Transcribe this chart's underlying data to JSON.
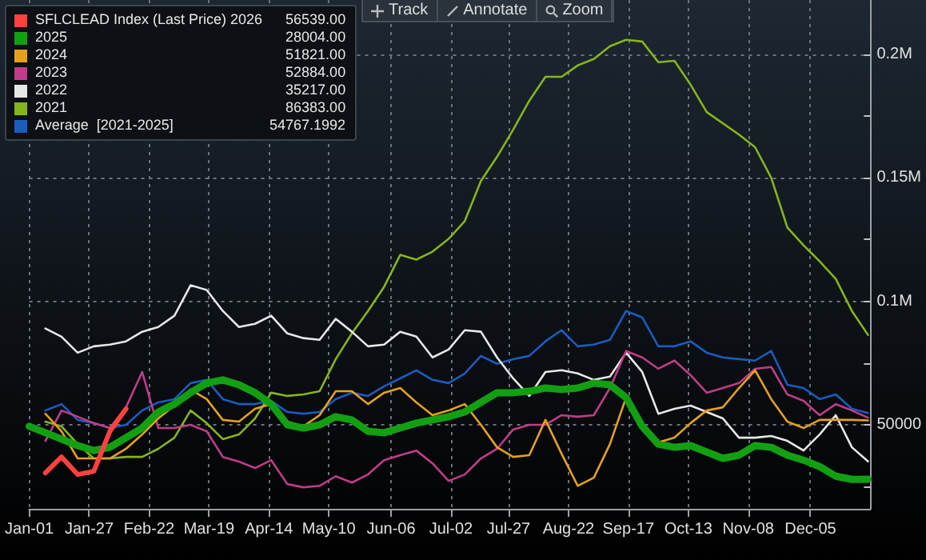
{
  "chart_data": {
    "type": "line",
    "annotations": [
      "Track",
      "Annotate",
      "Zoom",
      "56539.00",
      "28004.00",
      "51821.00",
      "52884.00",
      "35217.00",
      "86383.00",
      "54767.1992"
    ],
    "x": [
      "--01-01",
      "--01-08",
      "--01-15",
      "--01-22",
      "--01-29",
      "--02-05",
      "--02-12",
      "--02-19",
      "--02-26",
      "--03-04",
      "--03-11",
      "--03-18",
      "--03-25",
      "--04-01",
      "--04-08",
      "--04-15",
      "--04-22",
      "--04-29",
      "--05-06",
      "--05-13",
      "--05-20",
      "--05-27",
      "--06-03",
      "--06-10",
      "--06-17",
      "--06-24",
      "--07-01",
      "--07-08",
      "--07-15",
      "--07-22",
      "--07-29",
      "--08-05",
      "--08-12",
      "--08-19",
      "--08-26",
      "--09-02",
      "--09-09",
      "--09-16",
      "--09-23",
      "--09-30",
      "--10-07",
      "--10-14",
      "--10-21",
      "--10-28",
      "--11-04",
      "--11-11",
      "--11-18",
      "--11-25",
      "--12-02",
      "--12-09",
      "--12-16",
      "--12-23",
      "--12-30"
    ],
    "series": [
      {
        "name": "SFLCLEAD Index (Last Price) 2026",
        "color": "#ff4040",
        "values": [
          null,
          30500,
          37000,
          29900,
          31200,
          47400,
          56500,
          null,
          null,
          null,
          null,
          null,
          null,
          null,
          null,
          null,
          null,
          null,
          null,
          null,
          null,
          null,
          null,
          null,
          null,
          null,
          null,
          null,
          null,
          null,
          null,
          null,
          null,
          null,
          null,
          null,
          null,
          null,
          null,
          null,
          null,
          null,
          null,
          null,
          null,
          null,
          null,
          null,
          null,
          null,
          null,
          null,
          null
        ]
      },
      {
        "name": "2025",
        "color": "#12a012",
        "values": [
          49400,
          46800,
          44200,
          41600,
          39600,
          40900,
          44800,
          48700,
          55200,
          58400,
          63000,
          66900,
          68200,
          66200,
          63000,
          58400,
          50000,
          48700,
          50000,
          53300,
          52000,
          47400,
          46800,
          48700,
          50700,
          52000,
          53300,
          55200,
          59100,
          63000,
          63000,
          63600,
          64900,
          64300,
          64900,
          66900,
          66200,
          61000,
          49400,
          42200,
          40900,
          41600,
          39000,
          36400,
          37700,
          41600,
          40900,
          37700,
          35700,
          33100,
          29200,
          27900,
          28000
        ]
      },
      {
        "name": "2024",
        "color": "#e5a01c",
        "values": [
          null,
          54500,
          47400,
          36400,
          36400,
          36400,
          40300,
          46100,
          52600,
          57800,
          64300,
          60400,
          52000,
          51300,
          56500,
          58400,
          51300,
          49400,
          53900,
          63600,
          63600,
          58400,
          63000,
          64900,
          59100,
          53900,
          55800,
          58400,
          50000,
          40900,
          37000,
          37700,
          52000,
          38300,
          25300,
          28600,
          42200,
          61000,
          49400,
          42900,
          44800,
          50700,
          55800,
          57100,
          64900,
          72100,
          60400,
          51300,
          48700,
          52000,
          52000,
          52000,
          51800
        ]
      },
      {
        "name": "2023",
        "color": "#c03c88",
        "values": [
          null,
          43500,
          55800,
          53300,
          50700,
          48700,
          57100,
          71400,
          48700,
          48700,
          50000,
          47400,
          37000,
          35100,
          32500,
          35700,
          26000,
          24700,
          25300,
          29200,
          26600,
          29900,
          35700,
          37700,
          39600,
          34400,
          27300,
          29900,
          36400,
          40300,
          48100,
          50000,
          50000,
          53900,
          53300,
          53900,
          64900,
          79900,
          77300,
          72700,
          76000,
          70100,
          63000,
          64900,
          66900,
          72700,
          73400,
          62300,
          59700,
          53900,
          58400,
          55800,
          52900
        ]
      },
      {
        "name": "2022",
        "color": "#e6e6e6",
        "values": [
          null,
          89000,
          85700,
          79200,
          81800,
          82500,
          83800,
          87700,
          89600,
          94200,
          106500,
          104600,
          96100,
          89600,
          90900,
          94200,
          87000,
          85100,
          84400,
          92900,
          87700,
          81800,
          82500,
          87700,
          85700,
          77300,
          80500,
          88300,
          87700,
          77300,
          68800,
          61700,
          71400,
          72100,
          70800,
          68200,
          69500,
          79200,
          71400,
          54500,
          56500,
          57800,
          55200,
          52600,
          44800,
          44800,
          45500,
          43500,
          39600,
          46100,
          53900,
          40900,
          35200
        ]
      },
      {
        "name": "2021",
        "color": "#86b41c",
        "values": [
          null,
          51300,
          49400,
          42200,
          36400,
          36400,
          37000,
          37000,
          40300,
          44800,
          55800,
          50700,
          44200,
          46100,
          52600,
          63000,
          61700,
          62300,
          63600,
          76600,
          87000,
          96100,
          105900,
          118800,
          116900,
          120100,
          125300,
          132500,
          148700,
          158500,
          169500,
          181200,
          190900,
          190900,
          195500,
          198100,
          203300,
          205900,
          205200,
          196800,
          197400,
          187700,
          176600,
          172100,
          167500,
          162400,
          150000,
          129900,
          122700,
          116200,
          109100,
          96100,
          86400
        ]
      },
      {
        "name": "Average  [2021-2025]",
        "color": "#1a5cc0",
        "values": [
          null,
          55800,
          58400,
          52000,
          50700,
          48700,
          50000,
          55800,
          59100,
          60400,
          66900,
          68200,
          60400,
          58400,
          58400,
          59700,
          55200,
          54500,
          55200,
          60400,
          63000,
          61700,
          65600,
          68800,
          72100,
          68200,
          66900,
          70800,
          77900,
          74700,
          76600,
          77900,
          83800,
          88300,
          81800,
          82500,
          84400,
          96100,
          93500,
          81800,
          81800,
          83800,
          79200,
          77300,
          76600,
          76000,
          79900,
          66200,
          64900,
          60400,
          62300,
          56500,
          54800
        ]
      }
    ],
    "xlim": [
      "--01-01",
      "--12-31"
    ],
    "xticks": [
      {
        "value": "--01-01",
        "label": "Jan-01"
      },
      {
        "value": "--01-27",
        "label": "Jan-27"
      },
      {
        "value": "--02-22",
        "label": "Feb-22"
      },
      {
        "value": "--03-19",
        "label": "Mar-19"
      },
      {
        "value": "--04-14",
        "label": "Apr-14"
      },
      {
        "value": "--05-10",
        "label": "May-10"
      },
      {
        "value": "--06-06",
        "label": "Jun-06"
      },
      {
        "value": "--07-02",
        "label": "Jul-02"
      },
      {
        "value": "--07-27",
        "label": "Jul-27"
      },
      {
        "value": "--08-22",
        "label": "Aug-22"
      },
      {
        "value": "--09-17",
        "label": "Sep-17"
      },
      {
        "value": "--10-13",
        "label": "Oct-13"
      },
      {
        "value": "--11-08",
        "label": "Nov-08"
      },
      {
        "value": "--12-05",
        "label": "Dec-05"
      }
    ],
    "ylim": [
      16000,
      222000
    ],
    "yticks": [
      {
        "value": 25000,
        "label": null
      },
      50000,
      {
        "value": 75000,
        "label": null
      },
      {
        "value": 100000,
        "label": "0.1M"
      },
      {
        "value": 125000,
        "label": null
      },
      {
        "value": 150000,
        "label": "0.15M"
      },
      {
        "value": 175000,
        "label": null
      },
      {
        "value": 200000,
        "label": "0.2M"
      }
    ],
    "grid": true,
    "legend": "top left",
    "marker": "none",
    "line_style": "solid"
  }
}
